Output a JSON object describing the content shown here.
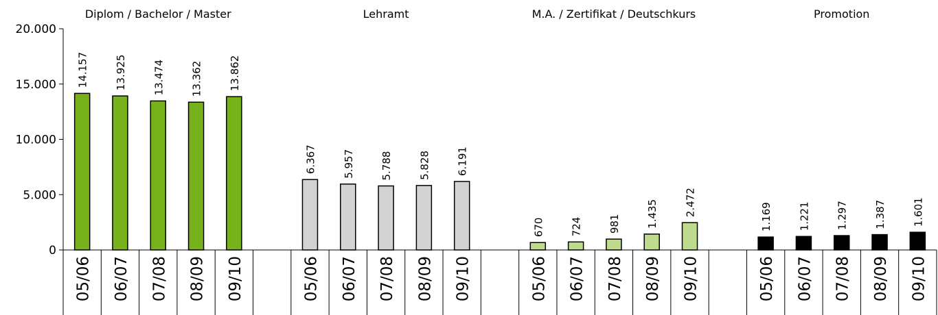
{
  "chart_data": {
    "type": "bar",
    "categories": [
      "05/06",
      "06/07",
      "07/08",
      "08/09",
      "09/10"
    ],
    "groups": [
      {
        "name": "Diplom / Bachelor / Master",
        "color": "#77b21c",
        "values": [
          14157,
          13925,
          13474,
          13362,
          13862
        ],
        "value_labels": [
          "14.157",
          "13.925",
          "13.474",
          "13.362",
          "13.862"
        ]
      },
      {
        "name": "Lehramt",
        "color": "#d3d3d3",
        "values": [
          6367,
          5957,
          5788,
          5828,
          6191
        ],
        "value_labels": [
          "6.367",
          "5.957",
          "5.788",
          "5.828",
          "6.191"
        ]
      },
      {
        "name": "M.A. / Zertifikat / Deutschkurs",
        "color": "#bedb8e",
        "values": [
          670,
          724,
          981,
          1435,
          2472
        ],
        "value_labels": [
          "670",
          "724",
          "981",
          "1.435",
          "2.472"
        ]
      },
      {
        "name": "Promotion",
        "color": "#000000",
        "values": [
          1169,
          1221,
          1297,
          1387,
          1601
        ],
        "value_labels": [
          "1.169",
          "1.221",
          "1.297",
          "1.387",
          "1.601"
        ]
      }
    ],
    "ylim": [
      0,
      20000
    ],
    "yticks": [
      0,
      {
        "value": 5000,
        "label": "5.000"
      },
      {
        "value": 10000,
        "label": "10.000"
      },
      {
        "value": 15000,
        "label": "15.000"
      },
      {
        "value": 20000,
        "label": "20.000"
      }
    ]
  }
}
